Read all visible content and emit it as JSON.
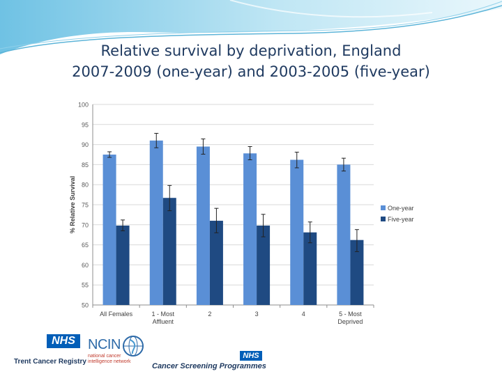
{
  "slide": {
    "title_line1": "Relative survival by deprivation, England",
    "title_line2": "2007-2009 (one-year) and 2003-2005 (five-year)"
  },
  "logos": {
    "nhs_left": "NHS",
    "trent": "Trent Cancer Registry",
    "ncin": "NCIN",
    "ncin_sub1": "national cancer",
    "ncin_sub2": "intelligence network",
    "nhs_right": "NHS",
    "screening": "Cancer Screening Programmes"
  },
  "colors": {
    "one_year": "#5a8fd6",
    "five_year": "#1f4a82",
    "banner": "#9fd3ea"
  },
  "chart_data": {
    "type": "bar",
    "categories": [
      [
        "All Females"
      ],
      [
        "1 - Most",
        "Affluent"
      ],
      [
        "2"
      ],
      [
        "3"
      ],
      [
        "4"
      ],
      [
        "5 - Most",
        "Deprived"
      ]
    ],
    "series": [
      {
        "name": "One-year",
        "values": [
          87.5,
          91,
          89.5,
          87.8,
          86.2,
          85
        ],
        "err_low": [
          86.8,
          89.2,
          87.6,
          86.2,
          84.2,
          83.4
        ],
        "err_high": [
          88.2,
          92.8,
          91.4,
          89.5,
          88.1,
          86.6
        ]
      },
      {
        "name": "Five-year",
        "values": [
          69.8,
          76.7,
          71,
          69.8,
          68.1,
          66.2
        ],
        "err_low": [
          68.5,
          73.5,
          68,
          67,
          65.5,
          63.3
        ],
        "err_high": [
          71.2,
          79.8,
          74.1,
          72.6,
          70.7,
          68.8
        ]
      }
    ],
    "ylabel": "% Relative Survival",
    "xlabel": "",
    "ylim": [
      50,
      100
    ],
    "yticks": [
      50,
      55,
      60,
      65,
      70,
      75,
      80,
      85,
      90,
      95,
      100
    ],
    "grid": true,
    "legend": "right"
  }
}
